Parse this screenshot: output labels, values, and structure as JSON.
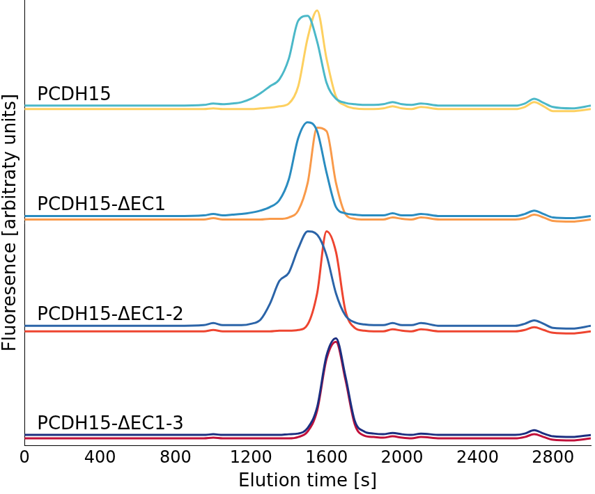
{
  "chart_data": {
    "type": "line",
    "x_label": "Elution time [s]",
    "y_label": "Fluoresence [arbitraty units]",
    "annotations": [
      {
        "text": "PCDH15"
      },
      {
        "text": "PCDH15-ΔEC1"
      },
      {
        "text": "PCDH15-ΔEC1-2"
      },
      {
        "text": "PCDH15-ΔEC1-3"
      }
    ],
    "x": [
      0,
      400,
      800,
      950,
      1000,
      1050,
      1100,
      1150,
      1200,
      1250,
      1300,
      1350,
      1400,
      1450,
      1500,
      1550,
      1600,
      1650,
      1700,
      1750,
      1800,
      1850,
      1900,
      1950,
      2000,
      2050,
      2100,
      2200,
      2400,
      2600,
      2650,
      2700,
      2750,
      2800,
      2900,
      3000
    ],
    "series": [
      {
        "color": "#4bb8c8",
        "values": [
          4.92,
          4.92,
          4.92,
          4.93,
          4.95,
          4.94,
          4.95,
          4.97,
          5.02,
          5.1,
          5.2,
          5.3,
          5.6,
          6.15,
          6.22,
          5.85,
          5.25,
          5.02,
          4.96,
          4.94,
          4.93,
          4.93,
          4.94,
          4.97,
          4.94,
          4.93,
          4.95,
          4.92,
          4.92,
          4.92,
          4.95,
          5.02,
          4.96,
          4.9,
          4.88,
          4.92
        ]
      },
      {
        "color": "#fdd060",
        "values": [
          4.87,
          4.87,
          4.87,
          4.87,
          4.88,
          4.87,
          4.87,
          4.87,
          4.87,
          4.88,
          4.89,
          4.91,
          4.95,
          5.2,
          5.9,
          6.3,
          5.6,
          5.05,
          4.92,
          4.88,
          4.87,
          4.87,
          4.88,
          4.91,
          4.88,
          4.87,
          4.9,
          4.87,
          4.87,
          4.87,
          4.9,
          4.97,
          4.91,
          4.84,
          4.84,
          4.87
        ]
      },
      {
        "color": "#2a8cc0",
        "values": [
          3.32,
          3.32,
          3.32,
          3.33,
          3.35,
          3.33,
          3.34,
          3.35,
          3.37,
          3.4,
          3.45,
          3.55,
          3.85,
          4.45,
          4.68,
          4.55,
          3.95,
          3.45,
          3.36,
          3.34,
          3.33,
          3.33,
          3.33,
          3.36,
          3.33,
          3.33,
          3.35,
          3.32,
          3.32,
          3.32,
          3.35,
          3.4,
          3.35,
          3.3,
          3.29,
          3.32
        ]
      },
      {
        "color": "#f99a4a",
        "values": [
          3.27,
          3.27,
          3.27,
          3.27,
          3.29,
          3.27,
          3.27,
          3.27,
          3.27,
          3.27,
          3.28,
          3.28,
          3.3,
          3.4,
          3.8,
          4.6,
          4.55,
          3.8,
          3.35,
          3.28,
          3.27,
          3.27,
          3.27,
          3.3,
          3.28,
          3.27,
          3.3,
          3.27,
          3.27,
          3.27,
          3.29,
          3.34,
          3.3,
          3.25,
          3.24,
          3.27
        ]
      },
      {
        "color": "#2b64a8",
        "values": [
          1.73,
          1.73,
          1.73,
          1.74,
          1.77,
          1.74,
          1.74,
          1.74,
          1.76,
          1.82,
          2.05,
          2.38,
          2.5,
          2.85,
          3.1,
          3.05,
          2.75,
          2.2,
          1.88,
          1.78,
          1.75,
          1.74,
          1.74,
          1.77,
          1.74,
          1.74,
          1.77,
          1.73,
          1.73,
          1.73,
          1.76,
          1.81,
          1.76,
          1.7,
          1.69,
          1.73
        ]
      },
      {
        "color": "#ee4530",
        "values": [
          1.65,
          1.65,
          1.65,
          1.65,
          1.67,
          1.65,
          1.65,
          1.65,
          1.65,
          1.65,
          1.65,
          1.66,
          1.66,
          1.67,
          1.75,
          2.2,
          3.1,
          2.8,
          1.95,
          1.7,
          1.66,
          1.65,
          1.65,
          1.68,
          1.66,
          1.65,
          1.68,
          1.65,
          1.65,
          1.65,
          1.67,
          1.71,
          1.67,
          1.63,
          1.62,
          1.65
        ]
      },
      {
        "color": "#1c2e80",
        "values": [
          0.15,
          0.15,
          0.15,
          0.15,
          0.16,
          0.15,
          0.15,
          0.15,
          0.15,
          0.15,
          0.15,
          0.15,
          0.16,
          0.17,
          0.25,
          0.55,
          1.3,
          1.55,
          1.0,
          0.35,
          0.2,
          0.17,
          0.16,
          0.18,
          0.16,
          0.15,
          0.17,
          0.15,
          0.15,
          0.15,
          0.17,
          0.22,
          0.17,
          0.13,
          0.12,
          0.15
        ]
      },
      {
        "color": "#c0103a",
        "values": [
          0.1,
          0.1,
          0.1,
          0.1,
          0.11,
          0.1,
          0.1,
          0.1,
          0.1,
          0.1,
          0.1,
          0.1,
          0.1,
          0.12,
          0.2,
          0.5,
          1.25,
          1.5,
          0.95,
          0.3,
          0.14,
          0.12,
          0.11,
          0.13,
          0.11,
          0.1,
          0.12,
          0.1,
          0.1,
          0.1,
          0.12,
          0.16,
          0.12,
          0.08,
          0.07,
          0.1
        ]
      }
    ],
    "xlim": [
      0,
      3000
    ],
    "xticks": [
      0,
      400,
      800,
      1200,
      1600,
      2000,
      2400,
      2800
    ],
    "ylim": [
      0,
      6.45
    ],
    "tick_labels": "x",
    "grid": false
  }
}
